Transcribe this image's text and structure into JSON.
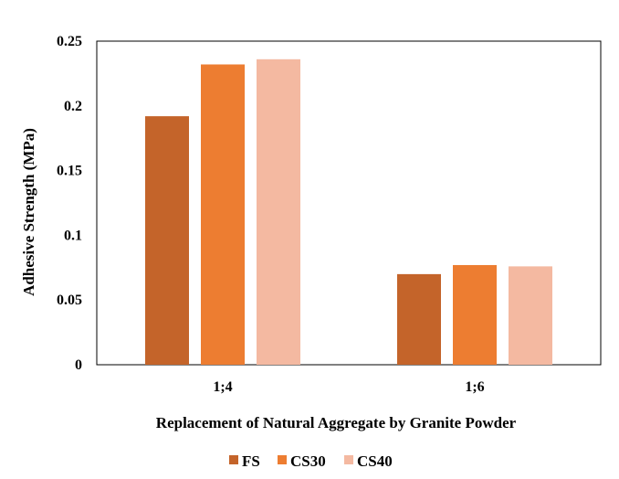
{
  "chart_data": {
    "type": "bar",
    "categories": [
      "1;4",
      "1;6"
    ],
    "series": [
      {
        "name": "FS",
        "color": "#C4642A",
        "values": [
          0.192,
          0.07
        ]
      },
      {
        "name": "CS30",
        "color": "#ED7D31",
        "values": [
          0.232,
          0.077
        ]
      },
      {
        "name": "CS40",
        "color": "#F4B9A1",
        "values": [
          0.236,
          0.076
        ]
      }
    ],
    "title": "",
    "xlabel": "Replacement of Natural Aggregate by Granite Powder",
    "ylabel": "Adhesive Strength (MPa)",
    "ylim": [
      0,
      0.25
    ],
    "yticks": [
      "0",
      "0.05",
      "0.1",
      "0.15",
      "0.2",
      "0.25"
    ],
    "grid": false,
    "legend_position": "bottom"
  }
}
